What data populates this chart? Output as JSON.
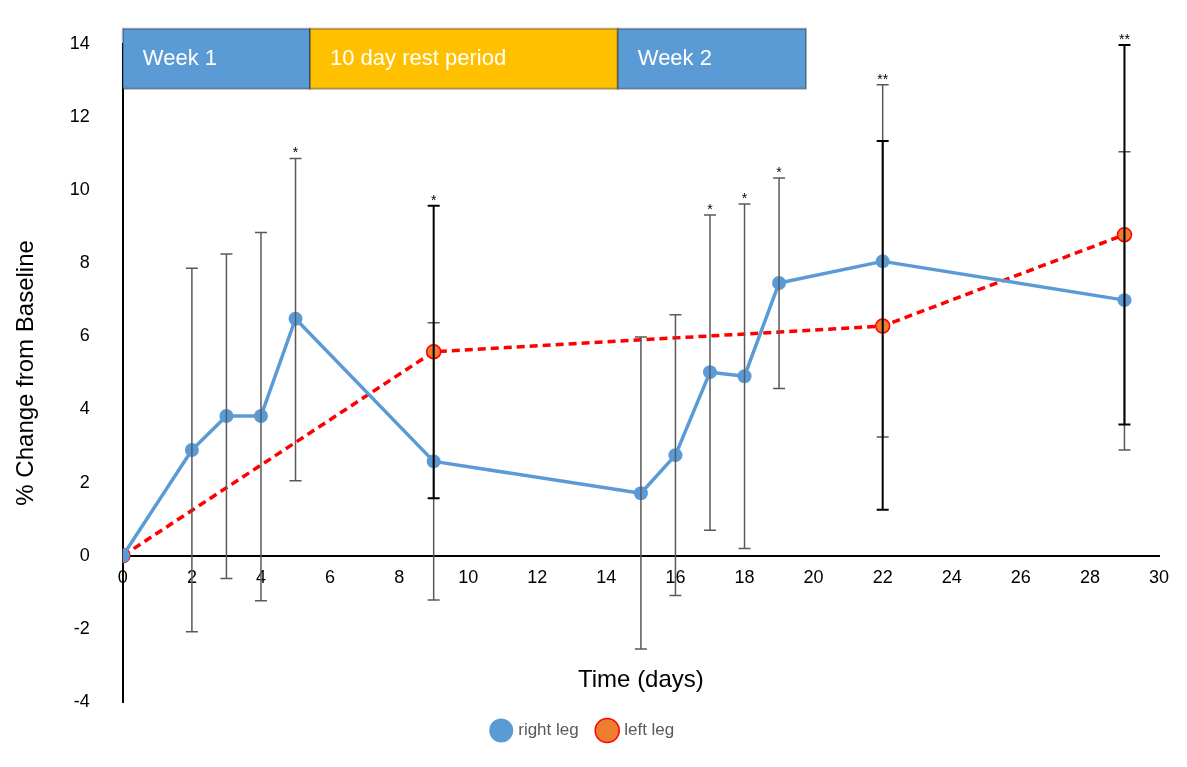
{
  "chart_data": {
    "type": "line",
    "xlabel": "Time (days)",
    "ylabel": "% Change from Baseline",
    "xlim": [
      0,
      30
    ],
    "xticks": [
      0,
      2,
      4,
      6,
      8,
      10,
      12,
      14,
      16,
      18,
      20,
      22,
      24,
      26,
      28,
      30
    ],
    "ylim": [
      -4,
      14
    ],
    "yticks": [
      -4,
      -2,
      0,
      2,
      4,
      6,
      8,
      10,
      12,
      14
    ],
    "grid": false,
    "legend": "bottom",
    "marker": "circle",
    "series": [
      {
        "name": "right leg",
        "color": "#5b9bd5",
        "line_style": "solid",
        "x": [
          0,
          2,
          3,
          4,
          5,
          9,
          15,
          16,
          17,
          18,
          19,
          22,
          29
        ],
        "values": [
          0,
          2.89,
          3.82,
          3.82,
          6.48,
          2.58,
          1.71,
          2.75,
          5.02,
          4.91,
          7.46,
          8.05,
          6.99
        ],
        "errors": [
          null,
          [
            -2.08,
            7.86
          ],
          [
            -0.62,
            8.25
          ],
          [
            -1.23,
            8.84
          ],
          [
            2.05,
            10.86
          ],
          [
            -1.21,
            6.37
          ],
          [
            -2.55,
            5.98
          ],
          [
            -1.09,
            6.59
          ],
          [
            0.7,
            9.32
          ],
          [
            0.2,
            9.62
          ],
          [
            4.57,
            10.33
          ],
          [
            3.25,
            12.88
          ],
          [
            2.89,
            11.05
          ]
        ]
      },
      {
        "name": "left leg",
        "color": "#ff0000",
        "line_style": "dashed",
        "x": [
          0,
          9,
          22,
          29
        ],
        "values": [
          0,
          5.58,
          6.28,
          8.78
        ],
        "errors": [
          null,
          [
            1.57,
            9.57
          ],
          [
            1.26,
            11.34
          ],
          [
            3.59,
            13.97
          ]
        ]
      }
    ],
    "bands": [
      {
        "axis": "x",
        "from": 0,
        "to": 5.42,
        "label": "Week 1",
        "color": "#5b9bd5"
      },
      {
        "axis": "x",
        "from": 5.42,
        "to": 14.33,
        "label": "10 day rest period",
        "color": "#ffc000"
      },
      {
        "axis": "x",
        "from": 14.33,
        "to": 19.78,
        "label": "Week 2",
        "color": "#5b9bd5"
      }
    ],
    "annotations": [
      {
        "text": "*",
        "x": 5,
        "y": 10.86
      },
      {
        "text": "*",
        "x": 9,
        "y": 9.57
      },
      {
        "text": "*",
        "x": 17,
        "y": 9.32
      },
      {
        "text": "*",
        "x": 18,
        "y": 9.62
      },
      {
        "text": "*",
        "x": 19,
        "y": 10.33
      },
      {
        "text": "**",
        "x": 22,
        "y": 12.88
      },
      {
        "text": "**",
        "x": 29,
        "y": 13.97
      }
    ]
  }
}
